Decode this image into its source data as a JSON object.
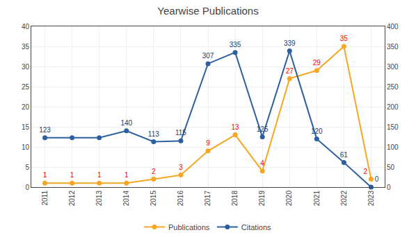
{
  "chart_data": {
    "type": "line",
    "title": "Yearwise Publications",
    "x": [
      2011,
      2012,
      2013,
      2014,
      2015,
      2016,
      2017,
      2018,
      2019,
      2020,
      2021,
      2022,
      2023
    ],
    "xlim": [
      2010.5,
      2023.5
    ],
    "xticks": [
      2011,
      2012,
      2013,
      2014,
      2015,
      2016,
      2017,
      2018,
      2019,
      2020,
      2021,
      2022,
      2023
    ],
    "ylim": [
      0,
      40
    ],
    "yticks": [
      0,
      5,
      10,
      15,
      20,
      25,
      30,
      35,
      40
    ],
    "y2lim": [
      0,
      400
    ],
    "y2ticks": [
      0,
      50,
      100,
      150,
      200,
      250,
      300,
      350,
      400
    ],
    "grid": true,
    "legend": "bottom",
    "data_labels": true,
    "series": [
      {
        "name": "Publications",
        "color": "#F5A623",
        "marker": "circle",
        "values": [
          1,
          1,
          1,
          1,
          2,
          3,
          9,
          13,
          4,
          27,
          29,
          35,
          2
        ]
      },
      {
        "name": "Citations",
        "color": "#2C5F9E",
        "marker": "circle",
        "axis": "y2",
        "values": [
          123,
          123,
          123,
          140,
          113,
          115,
          307,
          335,
          125,
          339,
          120,
          61,
          0
        ],
        "value_labels": [
          "123",
          null,
          null,
          "140",
          "113",
          "115",
          "307",
          "335",
          "125",
          "339",
          "120",
          "61",
          "0"
        ]
      }
    ]
  }
}
